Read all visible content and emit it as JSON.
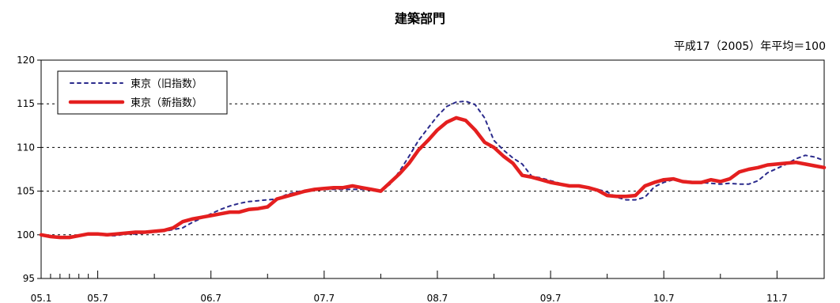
{
  "chart_data": {
    "type": "line",
    "title": "建築部門",
    "subtitle": "平成17（2005）年平均＝100",
    "xlabel": "",
    "ylabel": "",
    "ylim": [
      95,
      120
    ],
    "yticks": [
      95,
      100,
      105,
      110,
      115,
      120
    ],
    "x_tick_labels": [
      "05.1",
      "05.7",
      "06.7",
      "07.7",
      "08.7",
      "09.7",
      "10.7",
      "11.7"
    ],
    "grid": true,
    "legend_position": "top-left",
    "series": [
      {
        "name": "東京（旧指数）",
        "style": "dotted",
        "color": "#2b2b8c",
        "values": [
          100.0,
          99.9,
          99.8,
          99.8,
          99.9,
          100.0,
          100.0,
          99.9,
          99.9,
          100.1,
          100.1,
          100.2,
          100.3,
          100.4,
          100.6,
          100.8,
          101.4,
          101.9,
          102.4,
          102.9,
          103.3,
          103.6,
          103.8,
          103.9,
          104.0,
          104.1,
          104.6,
          104.9,
          105.1,
          105.2,
          105.2,
          105.2,
          105.2,
          105.2,
          105.2,
          105.1,
          105.0,
          105.8,
          107.3,
          109.0,
          110.8,
          112.2,
          113.6,
          114.7,
          115.2,
          115.3,
          114.9,
          113.4,
          110.8,
          109.7,
          108.8,
          108.1,
          106.7,
          106.5,
          106.2,
          105.9,
          105.6,
          105.5,
          105.4,
          105.2,
          104.9,
          104.3,
          104.0,
          104.0,
          104.3,
          105.5,
          106.0,
          106.3,
          106.2,
          106.1,
          106.0,
          105.9,
          105.8,
          105.9,
          105.8,
          105.8,
          106.2,
          107.1,
          107.6,
          108.1,
          108.7,
          109.1,
          108.9,
          108.5
        ]
      },
      {
        "name": "東京（新指数）",
        "style": "solid",
        "color": "#e41f1f",
        "values": [
          100.0,
          99.8,
          99.7,
          99.7,
          99.9,
          100.1,
          100.1,
          100.0,
          100.1,
          100.2,
          100.3,
          100.3,
          100.4,
          100.5,
          100.8,
          101.5,
          101.8,
          102.0,
          102.2,
          102.4,
          102.6,
          102.6,
          102.9,
          103.0,
          103.2,
          104.1,
          104.4,
          104.7,
          105.0,
          105.2,
          105.3,
          105.4,
          105.4,
          105.6,
          105.4,
          105.2,
          105.0,
          106.0,
          107.0,
          108.2,
          109.7,
          110.8,
          112.0,
          112.9,
          113.4,
          113.1,
          112.0,
          110.6,
          110.0,
          109.0,
          108.2,
          106.8,
          106.6,
          106.3,
          106.0,
          105.8,
          105.6,
          105.6,
          105.4,
          105.1,
          104.5,
          104.4,
          104.4,
          104.5,
          105.6,
          106.0,
          106.3,
          106.4,
          106.1,
          106.0,
          106.0,
          106.3,
          106.1,
          106.4,
          107.2,
          107.5,
          107.7,
          108.0,
          108.1,
          108.2,
          108.3,
          108.1,
          107.9,
          107.7
        ]
      }
    ]
  }
}
